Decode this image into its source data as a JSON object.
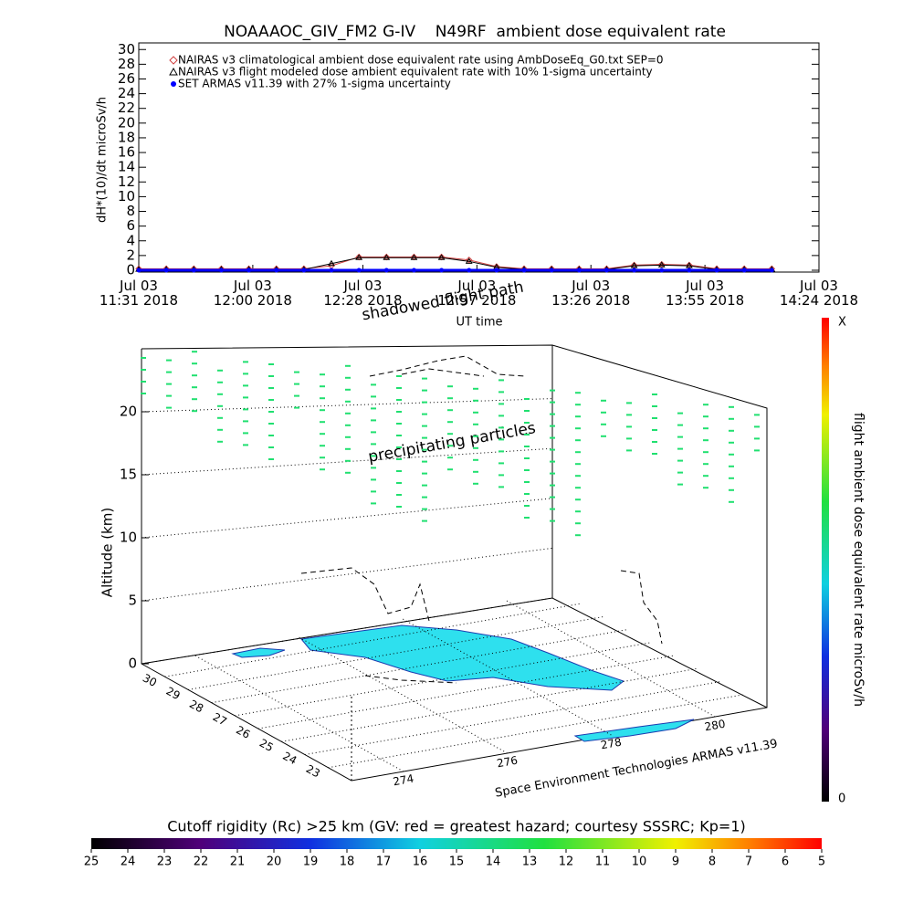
{
  "chart_data": [
    {
      "type": "line",
      "title": "NOAAAOC_GIV_FM2 G-IV    N49RF  ambient dose equivalent rate",
      "ylabel": "dH*(10)/dt microSv/h",
      "xlabel": "UT time",
      "x": [
        "2018-07-03 11:31",
        "2018-07-03 11:38",
        "2018-07-03 11:45",
        "2018-07-03 11:52",
        "2018-07-03 11:59",
        "2018-07-03 12:06",
        "2018-07-03 12:13",
        "2018-07-03 12:20",
        "2018-07-03 12:27",
        "2018-07-03 12:34",
        "2018-07-03 12:41",
        "2018-07-03 12:48",
        "2018-07-03 12:55",
        "2018-07-03 13:02",
        "2018-07-03 13:09",
        "2018-07-03 13:16",
        "2018-07-03 13:23",
        "2018-07-03 13:30",
        "2018-07-03 13:37",
        "2018-07-03 13:44",
        "2018-07-03 13:51",
        "2018-07-03 13:58",
        "2018-07-03 14:05",
        "2018-07-03 14:12"
      ],
      "series": [
        {
          "name": "NAIRAS v3 climatological ambient dose equivalent rate using AmbDoseEq_G0.txt SEP=0",
          "color": "#d04040",
          "marker": "diamond",
          "values": [
            0.2,
            0.2,
            0.2,
            0.2,
            0.2,
            0.2,
            0.2,
            0.6,
            1.8,
            1.8,
            1.8,
            1.8,
            1.4,
            0.5,
            0.2,
            0.2,
            0.2,
            0.2,
            0.7,
            0.8,
            0.7,
            0.2,
            0.2,
            0.2
          ]
        },
        {
          "name": "NAIRAS v3 flight modeled dose ambient equivalent rate with 10% 1-sigma uncertainty",
          "color": "#000000",
          "marker": "triangle",
          "values": [
            0.1,
            0.1,
            0.1,
            0.1,
            0.1,
            0.1,
            0.1,
            0.9,
            1.7,
            1.7,
            1.7,
            1.7,
            1.2,
            0.4,
            0.1,
            0.1,
            0.1,
            0.1,
            0.6,
            0.7,
            0.6,
            0.1,
            0.1,
            0.1
          ]
        },
        {
          "name": "SET ARMAS v11.39 with 27% 1-sigma uncertainty",
          "color": "#0000ff",
          "marker": "circle",
          "values": [
            0,
            0,
            0,
            0,
            0,
            0,
            0,
            0,
            0,
            0,
            0,
            0,
            0,
            0,
            0,
            0,
            0,
            0,
            0,
            0,
            0,
            0,
            0,
            0
          ]
        }
      ],
      "xlim": [
        "2018-07-03 11:31",
        "2018-07-03 14:24"
      ],
      "xticks": [
        {
          "value": "2018-07-03 11:31",
          "label": "Jul 03\n11:31 2018"
        },
        {
          "value": "2018-07-03 12:00",
          "label": "Jul 03\n12:00 2018"
        },
        {
          "value": "2018-07-03 12:28",
          "label": "Jul 03\n12:28 2018"
        },
        {
          "value": "2018-07-03 12:57",
          "label": "Jul 03\n12:57 2018"
        },
        {
          "value": "2018-07-03 13:26",
          "label": "Jul 03\n13:26 2018"
        },
        {
          "value": "2018-07-03 13:55",
          "label": "Jul 03\n13:55 2018"
        },
        {
          "value": "2018-07-03 14:24",
          "label": "Jul 03\n14:24 2018"
        }
      ],
      "ylim": [
        -0.25,
        30.9
      ],
      "yticks": [
        0,
        2,
        4,
        6,
        8,
        10,
        12,
        14,
        16,
        18,
        20,
        22,
        24,
        26,
        28,
        30
      ]
    },
    {
      "type": "scene3d",
      "zlabel": "Altitude (km)",
      "zlim": [
        0,
        25
      ],
      "zticks": [
        0,
        5,
        10,
        15,
        20
      ],
      "ylim": [
        31,
        22
      ],
      "yticks": [
        30,
        29,
        28,
        27,
        26,
        25,
        24,
        23
      ],
      "xlim": [
        273,
        281
      ],
      "xticks": [
        274,
        276,
        278,
        280
      ],
      "annotations": [
        "shadowed flight path",
        "precipitating particles"
      ],
      "credit": "Space Environment Technologies ARMAS v11.39",
      "colorbar_label": "flight ambient dose equivalent rate microSv/h",
      "colorbar_min": 0,
      "colorbar_max_label": "X"
    },
    {
      "type": "colorbar",
      "title": "Cutoff rigidity (Rc) >25 km (GV: red = greatest hazard; courtesy SSSRC; Kp=1)",
      "clim": [
        25,
        5
      ],
      "ticks": [
        25,
        24,
        23,
        22,
        21,
        20,
        19,
        18,
        17,
        16,
        15,
        14,
        13,
        12,
        11,
        10,
        9,
        8,
        7,
        6,
        5
      ]
    }
  ]
}
